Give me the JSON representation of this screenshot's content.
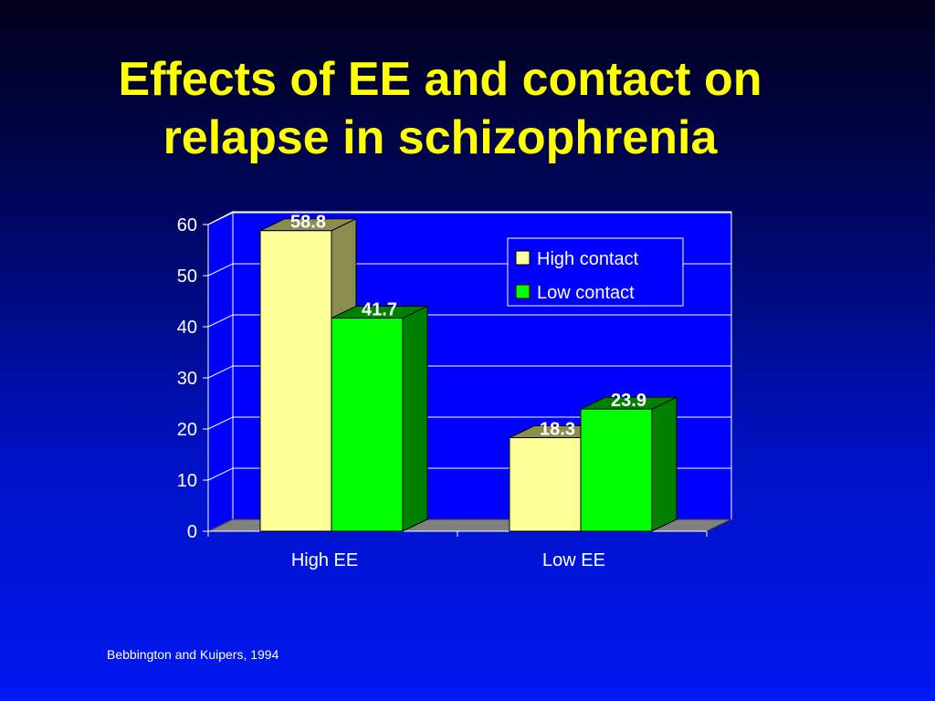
{
  "slide": {
    "title_line1": "Effects of EE and contact on",
    "title_line2": "relapse in schizophrenia",
    "source": "Bebbington and Kuipers, 1994"
  },
  "chart_data": {
    "type": "bar",
    "categories": [
      "High EE",
      "Low EE"
    ],
    "series": [
      {
        "name": "High contact",
        "values": [
          58.8,
          18.3
        ],
        "color": "#ffff99",
        "shade": "#8c8c50"
      },
      {
        "name": "Low contact",
        "values": [
          41.7,
          23.9
        ],
        "color": "#00ff00",
        "shade": "#008000"
      }
    ],
    "data_labels": [
      [
        "58.8",
        "18.3"
      ],
      [
        "41.7",
        "23.9"
      ]
    ],
    "ylim": [
      0,
      60
    ],
    "yticks": [
      0,
      10,
      20,
      30,
      40,
      50,
      60
    ],
    "grid": true,
    "legend": "top-right",
    "style": "3d-clustered-column",
    "colors": {
      "wall": "#0000ff",
      "floor": "#808080",
      "grid": "#ffffff",
      "axis": "#ffffff"
    }
  }
}
